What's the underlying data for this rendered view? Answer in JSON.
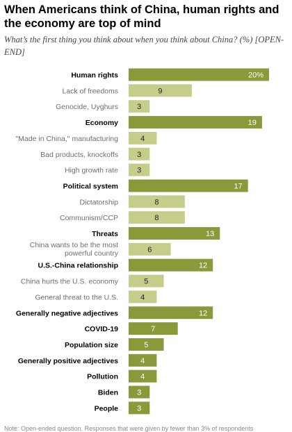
{
  "title": "When Americans think of China, human rights and the economy are top of mind",
  "subtitle": "What’s the first thing you think about when you think about China? (%) [OPEN-END]",
  "note": "Note: Open-ended question. Responses that were given by fewer than 3% of respondents",
  "colors": {
    "major": "#8a9a3b",
    "minor": "#c6cc8a",
    "label_major": "#000000",
    "label_minor": "#6e6e6e"
  },
  "chart_data": {
    "type": "bar",
    "orientation": "horizontal",
    "xlim": [
      0,
      20
    ],
    "grid": false,
    "value_suffix_first": "%",
    "categories": [
      "Human rights",
      "Lack of freedoms",
      "Genocide, Uyghurs",
      "Economy",
      "\"Made in China,\" manufacturing",
      "Bad products, knockoffs",
      "High growth rate",
      "Political system",
      "Dictatorship",
      "Communism/CCP",
      "Threats",
      "China wants to be the most powerful country",
      "U.S.-China relationship",
      "China hurts the U.S. economy",
      "General threat to the U.S.",
      "Generally negative adjectives",
      "COVID-19",
      "Population size",
      "Generally positive adjectives",
      "Pollution",
      "Biden",
      "People"
    ],
    "values": [
      20,
      9,
      3,
      19,
      4,
      3,
      3,
      17,
      8,
      8,
      13,
      6,
      12,
      5,
      4,
      12,
      7,
      5,
      4,
      4,
      3,
      3
    ],
    "level": [
      "major",
      "minor",
      "minor",
      "major",
      "minor",
      "minor",
      "minor",
      "major",
      "minor",
      "minor",
      "major",
      "minor",
      "major",
      "minor",
      "minor",
      "major",
      "major",
      "major",
      "major",
      "major",
      "major",
      "major"
    ]
  }
}
